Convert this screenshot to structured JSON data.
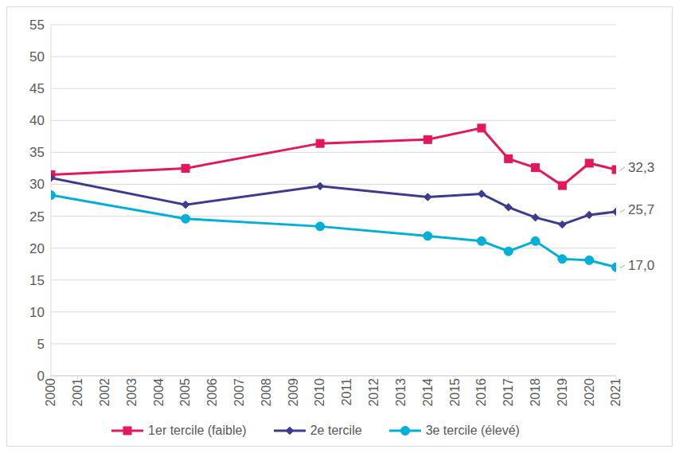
{
  "chart_data": {
    "type": "line",
    "x": [
      2000,
      2005,
      2010,
      2014,
      2016,
      2017,
      2018,
      2019,
      2020,
      2021
    ],
    "xlim": [
      2000,
      2021
    ],
    "xticks": [
      2000,
      2001,
      2002,
      2003,
      2004,
      2005,
      2006,
      2007,
      2008,
      2009,
      2010,
      2011,
      2012,
      2013,
      2014,
      2015,
      2016,
      2017,
      2018,
      2019,
      2020,
      2021
    ],
    "ylim": [
      0,
      55
    ],
    "yticks": [
      0,
      5,
      10,
      15,
      20,
      25,
      30,
      35,
      40,
      45,
      50,
      55
    ],
    "grid": true,
    "legend": "bottom",
    "series": [
      {
        "name": "1er tercile (faible)",
        "color": "#e2185b",
        "marker": "square",
        "values": [
          31.5,
          32.5,
          36.4,
          37.0,
          38.8,
          34.0,
          32.6,
          29.8,
          33.3,
          32.3
        ],
        "value_labels": [
          null,
          null,
          null,
          null,
          null,
          null,
          null,
          null,
          null,
          "32,3"
        ]
      },
      {
        "name": "2e tercile",
        "color": "#3b3b8f",
        "marker": "diamond",
        "values": [
          31.0,
          26.8,
          29.7,
          28.0,
          28.5,
          26.4,
          24.8,
          23.7,
          25.2,
          25.7
        ],
        "value_labels": [
          null,
          null,
          null,
          null,
          null,
          null,
          null,
          null,
          null,
          "25,7"
        ]
      },
      {
        "name": "3e tercile (élevé)",
        "color": "#00b0d8",
        "marker": "circle",
        "values": [
          28.3,
          24.6,
          23.4,
          21.9,
          21.1,
          19.5,
          21.1,
          18.3,
          18.1,
          17.0
        ],
        "value_labels": [
          null,
          null,
          null,
          null,
          null,
          null,
          null,
          null,
          null,
          "17,0"
        ]
      }
    ]
  }
}
